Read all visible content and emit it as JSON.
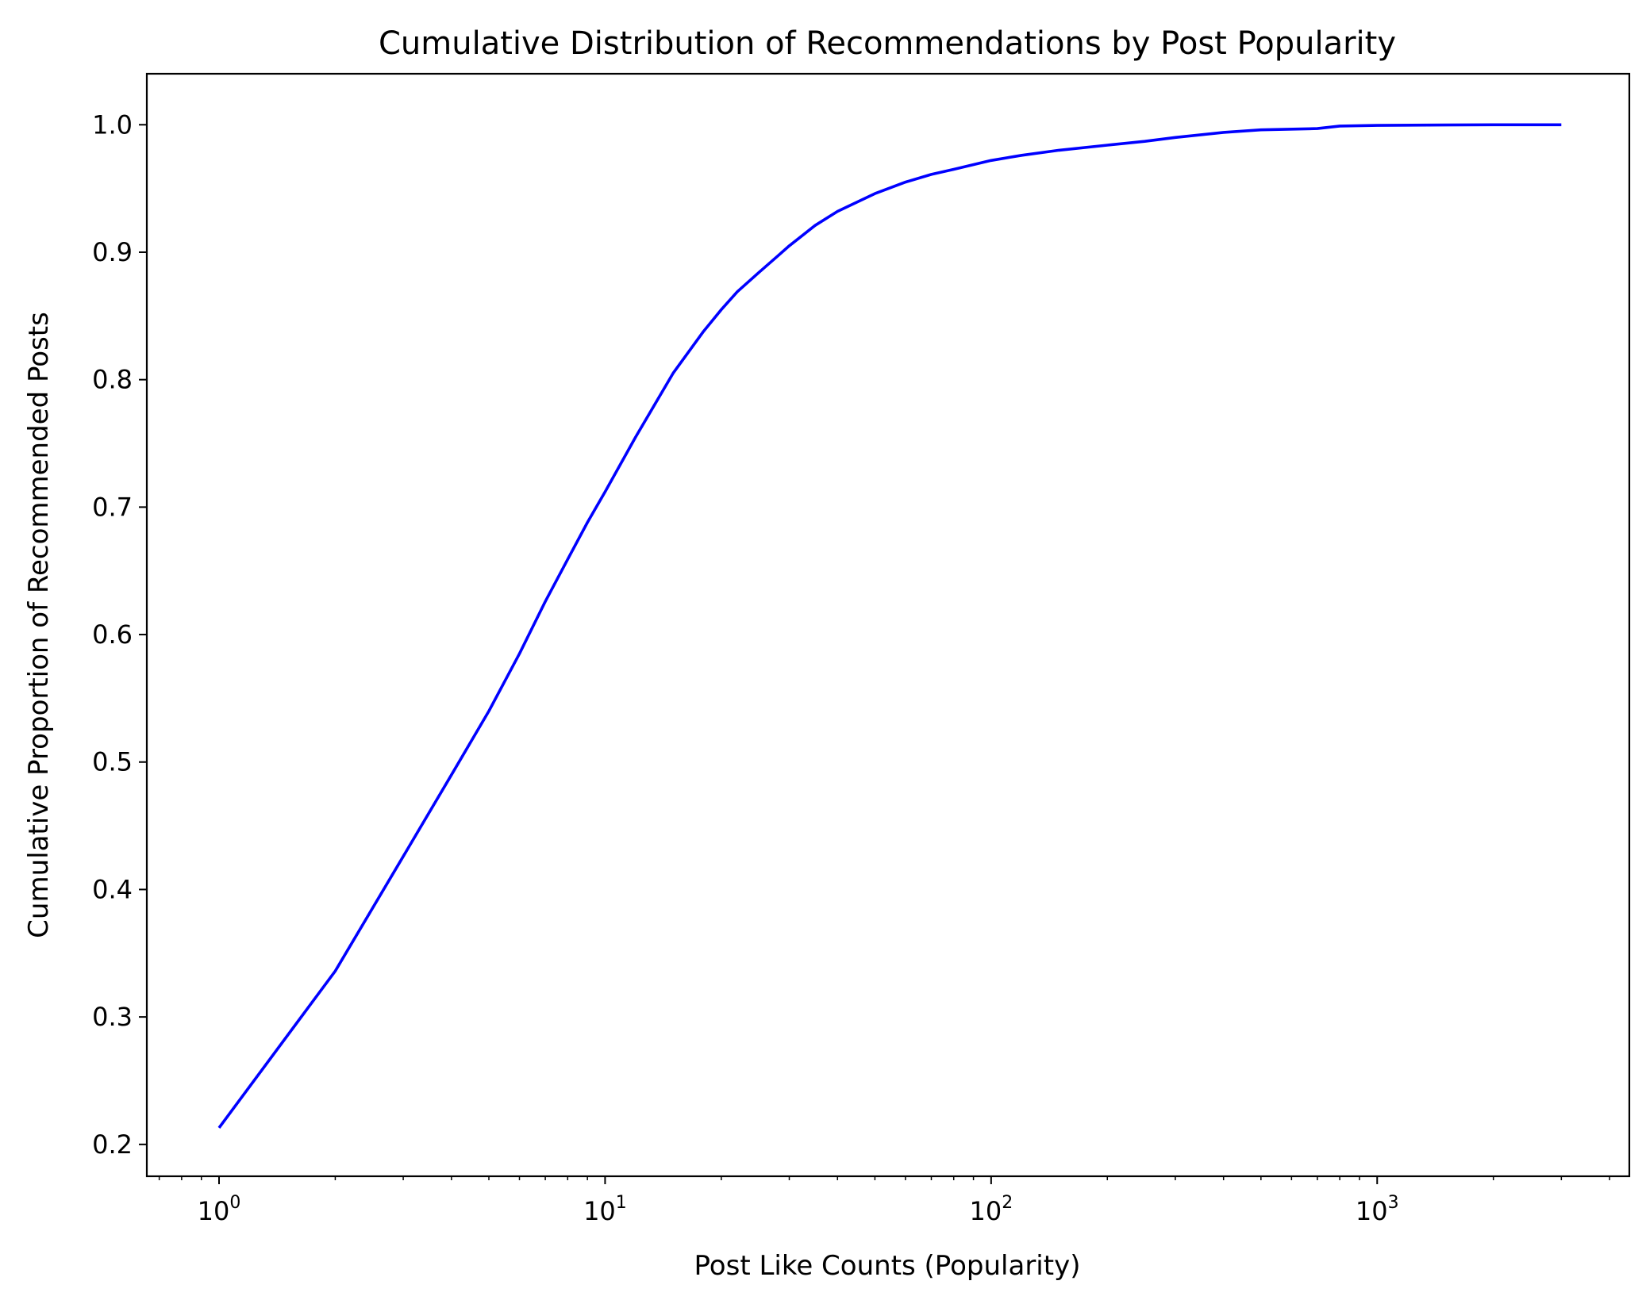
{
  "chart_data": {
    "type": "line",
    "title": "Cumulative Distribution of Recommendations by Post Popularity",
    "xlabel": "Post Like Counts (Popularity)",
    "ylabel": "Cumulative Proportion of Recommended Posts",
    "x_scale": "log",
    "xlim": [
      0.65,
      4500
    ],
    "ylim": [
      0.175,
      1.04
    ],
    "grid": false,
    "legend": "none",
    "line_color": "#0000ff",
    "x_ticks": [
      {
        "base": "10",
        "exp": "0",
        "value": 1
      },
      {
        "base": "10",
        "exp": "1",
        "value": 10
      },
      {
        "base": "10",
        "exp": "2",
        "value": 100
      },
      {
        "base": "10",
        "exp": "3",
        "value": 1000
      }
    ],
    "y_ticks": [
      "0.2",
      "0.3",
      "0.4",
      "0.5",
      "0.6",
      "0.7",
      "0.8",
      "0.9",
      "1.0"
    ],
    "series": [
      {
        "x": [
          1,
          2,
          3,
          4,
          5,
          6,
          7,
          8,
          9,
          10,
          12,
          15,
          18,
          20,
          22,
          25,
          28,
          30,
          35,
          40,
          50,
          60,
          70,
          80,
          100,
          120,
          150,
          200,
          250,
          300,
          400,
          500,
          700,
          800,
          1000,
          1500,
          2000,
          3000
        ],
        "y": [
          0.213,
          0.336,
          0.426,
          0.49,
          0.54,
          0.585,
          0.626,
          0.659,
          0.688,
          0.712,
          0.755,
          0.805,
          0.838,
          0.855,
          0.869,
          0.884,
          0.897,
          0.905,
          0.921,
          0.932,
          0.946,
          0.955,
          0.961,
          0.965,
          0.972,
          0.976,
          0.98,
          0.984,
          0.987,
          0.99,
          0.994,
          0.996,
          0.997,
          0.999,
          0.9995,
          0.9998,
          1.0,
          1.0
        ]
      }
    ]
  }
}
